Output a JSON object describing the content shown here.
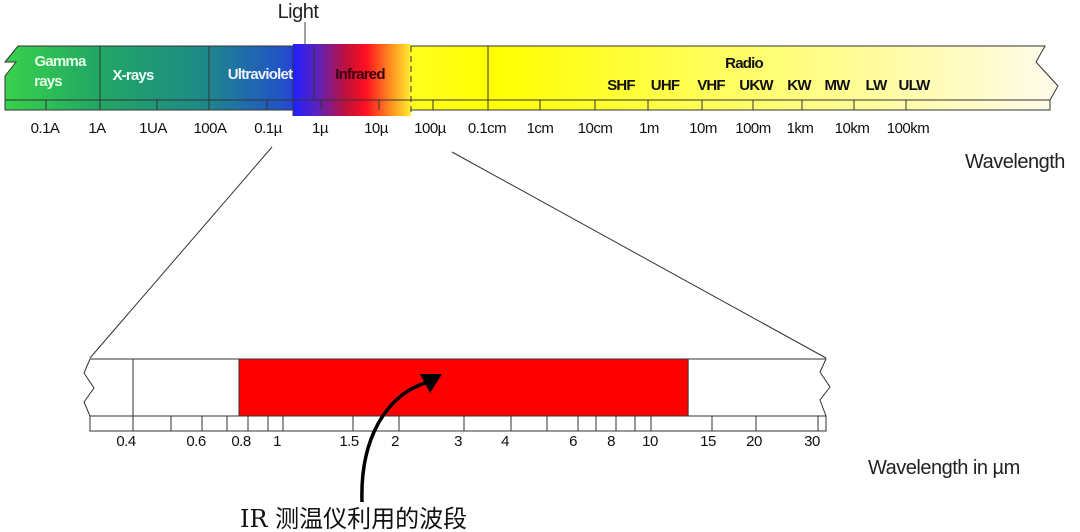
{
  "spectrum": {
    "light_label": "Light",
    "bands": {
      "gamma_line1": "Gamma",
      "gamma_line2": "rays",
      "xrays": "X-rays",
      "ultraviolet": "Ultraviolet",
      "infrared": "Infrared",
      "radio": "Radio"
    },
    "radio_subbands": [
      "SHF",
      "UHF",
      "VHF",
      "UKW",
      "KW",
      "MW",
      "LW",
      "ULW"
    ],
    "tick_labels": [
      "0.1A",
      "1A",
      "1UA",
      "100A",
      "0.1µ",
      "1µ",
      "10µ",
      "100µ",
      "0.1cm",
      "1cm",
      "10cm",
      "1m",
      "10m",
      "100m",
      "1km",
      "10km",
      "100km"
    ],
    "axis_label": "Wavelength",
    "colors": {
      "gamma": "#2ecc40",
      "xrays": "#1f8f7a",
      "ultraviolet": "#1e4fd0",
      "infrared": "#e8002a",
      "visible_yellow": "#ffff00"
    }
  },
  "zoom_scale": {
    "tick_labels": [
      "0.4",
      "0.6",
      "0.8",
      "1",
      "1.5",
      "2",
      "3",
      "4",
      "6",
      "8",
      "10",
      "15",
      "20",
      "30"
    ],
    "axis_label": "Wavelength in µm",
    "ir_band_range_um": [
      0.8,
      14
    ],
    "ir_band_color": "#ff0000"
  },
  "annotation": {
    "text": "IR 测温仪利用的波段"
  }
}
